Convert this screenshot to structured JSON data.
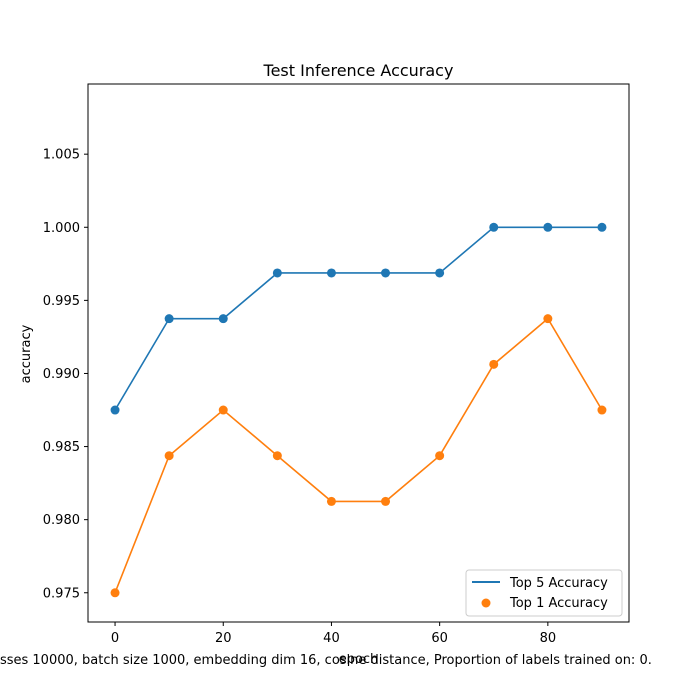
{
  "chart_data": {
    "type": "line",
    "title": "Test Inference Accuracy",
    "xlabel": "epoch",
    "ylabel": "accuracy",
    "footer": "asses 10000, batch size 1000, embedding dim 16, cosine distance, Proportion of labels trained on: 0.",
    "xlim": [
      -5,
      95
    ],
    "ylim": [
      0.973,
      1.0098
    ],
    "xticks": [
      0,
      20,
      40,
      60,
      80
    ],
    "yticks": [
      0.975,
      0.98,
      0.985,
      0.99,
      0.995,
      1.0,
      1.005
    ],
    "ytick_labels": [
      "0.975",
      "0.980",
      "0.985",
      "0.990",
      "0.995",
      "1.000",
      "1.005"
    ],
    "grid": false,
    "legend_position": "lower-right",
    "x": [
      0,
      10,
      20,
      30,
      40,
      50,
      60,
      70,
      80,
      90
    ],
    "series": [
      {
        "name": "Top 5 Accuracy",
        "color": "#1f77b4",
        "legend_marker": "line",
        "values": [
          0.9875,
          0.99375,
          0.99375,
          0.996875,
          0.996875,
          0.996875,
          0.996875,
          1.0,
          1.0,
          1.0
        ]
      },
      {
        "name": "Top 1 Accuracy",
        "color": "#ff7f0e",
        "legend_marker": "dot",
        "values": [
          0.975,
          0.984375,
          0.9875,
          0.984375,
          0.98125,
          0.98125,
          0.984375,
          0.990625,
          0.99375,
          0.9875
        ]
      }
    ]
  }
}
